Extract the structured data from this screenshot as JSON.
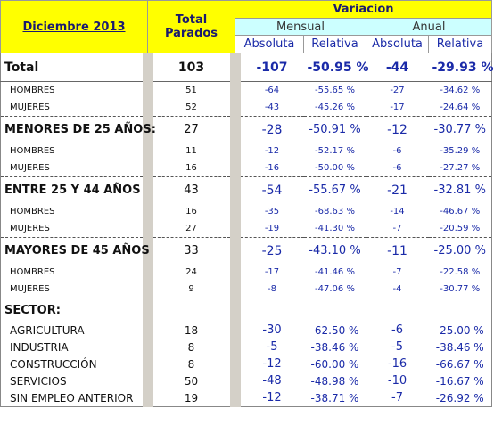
{
  "header": {
    "period": "Diciembre 2013",
    "total": "Total Parados",
    "variation": "Variacion",
    "monthly": "Mensual",
    "annual": "Anual",
    "columns": [
      "Absoluta",
      "Relativa",
      "Absoluta",
      "Relativa"
    ]
  },
  "total": [
    "Total",
    "103",
    "-107",
    "-50.95 %",
    "-44",
    "-29.93 %"
  ],
  "groups": [
    {
      "row": null,
      "rows": [
        [
          "HOMBRES",
          "51",
          "-64",
          "-55.65 %",
          "-27",
          "-34.62 %"
        ],
        [
          "MUJERES",
          "52",
          "-43",
          "-45.26 %",
          "-17",
          "-24.64 %"
        ]
      ]
    },
    {
      "row": [
        "MENORES DE 25 AÑOS:",
        "27",
        "-28",
        "-50.91 %",
        "-12",
        "-30.77 %"
      ],
      "rows": [
        [
          "HOMBRES",
          "11",
          "-12",
          "-52.17 %",
          "-6",
          "-35.29 %"
        ],
        [
          "MUJERES",
          "16",
          "-16",
          "-50.00 %",
          "-6",
          "-27.27 %"
        ]
      ]
    },
    {
      "row": [
        "ENTRE 25 Y 44 AÑOS",
        "43",
        "-54",
        "-55.67 %",
        "-21",
        "-32.81 %"
      ],
      "rows": [
        [
          "HOMBRES",
          "16",
          "-35",
          "-68.63 %",
          "-14",
          "-46.67 %"
        ],
        [
          "MUJERES",
          "27",
          "-19",
          "-41.30 %",
          "-7",
          "-20.59 %"
        ]
      ]
    },
    {
      "row": [
        "MAYORES DE 45 AÑOS",
        "33",
        "-25",
        "-43.10 %",
        "-11",
        "-25.00 %"
      ],
      "rows": [
        [
          "HOMBRES",
          "24",
          "-17",
          "-41.46 %",
          "-7",
          "-22.58 %"
        ],
        [
          "MUJERES",
          "9",
          "-8",
          "-47.06 %",
          "-4",
          "-30.77 %"
        ]
      ]
    }
  ],
  "sector": {
    "title": "SECTOR:",
    "rows": [
      [
        "AGRICULTURA",
        "18",
        "-30",
        "-62.50 %",
        "-6",
        "-25.00 %"
      ],
      [
        "INDUSTRIA",
        "8",
        "-5",
        "-38.46 %",
        "-5",
        "-38.46 %"
      ],
      [
        "CONSTRUCCIÓN",
        "8",
        "-12",
        "-60.00 %",
        "-16",
        "-66.67 %"
      ],
      [
        "SERVICIOS",
        "50",
        "-48",
        "-48.98 %",
        "-10",
        "-16.67 %"
      ],
      [
        "SIN EMPLEO ANTERIOR",
        "19",
        "-12",
        "-38.71 %",
        "-7",
        "-26.92 %"
      ]
    ]
  }
}
